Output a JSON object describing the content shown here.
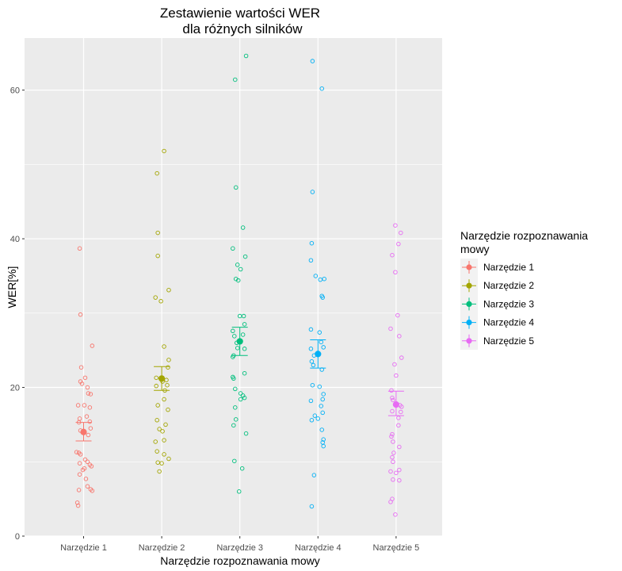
{
  "chart_data": {
    "type": "scatter",
    "title_line1": "Zestawienie wartości WER",
    "title_line2": "dla różnych silników",
    "xlabel": "Narzędzie rozpoznawania mowy",
    "ylabel": "WER[%]",
    "ylim": [
      0,
      67
    ],
    "yticks": [
      0,
      20,
      40,
      60
    ],
    "categories": [
      "Narzędzie 1",
      "Narzędzie 2",
      "Narzędzie 3",
      "Narzędzie 4",
      "Narzędzie 5"
    ],
    "legend": {
      "title_line1": "Narzędzie rozpoznawania",
      "title_line2": "mowy",
      "placement": "right"
    },
    "grid": true,
    "series": [
      {
        "name": "Narzędzie 1",
        "color": "#F8766D",
        "mean": 14.0,
        "ci": [
          12.8,
          15.3
        ],
        "points": [
          [
            -0.05,
            38.7
          ],
          [
            -0.04,
            29.8
          ],
          [
            0.11,
            25.6
          ],
          [
            -0.03,
            22.7
          ],
          [
            0.02,
            21.3
          ],
          [
            -0.04,
            20.8
          ],
          [
            -0.02,
            20.5
          ],
          [
            0.05,
            20.0
          ],
          [
            0.06,
            19.2
          ],
          [
            0.09,
            19.1
          ],
          [
            -0.07,
            17.6
          ],
          [
            0.01,
            17.6
          ],
          [
            0.04,
            16.1
          ],
          [
            0.08,
            17.3
          ],
          [
            -0.05,
            15.8
          ],
          [
            -0.06,
            15.3
          ],
          [
            0.08,
            15.4
          ],
          [
            0.09,
            14.5
          ],
          [
            -0.04,
            14.2
          ],
          [
            0.06,
            13.6
          ],
          [
            -0.09,
            11.3
          ],
          [
            -0.06,
            11.2
          ],
          [
            -0.04,
            11.0
          ],
          [
            0.02,
            10.3
          ],
          [
            -0.05,
            9.8
          ],
          [
            0.05,
            10.0
          ],
          [
            0.08,
            9.6
          ],
          [
            0.1,
            9.4
          ],
          [
            0.01,
            9.1
          ],
          [
            -0.01,
            8.9
          ],
          [
            -0.05,
            8.3
          ],
          [
            0.03,
            7.7
          ],
          [
            0.05,
            6.7
          ],
          [
            -0.06,
            6.2
          ],
          [
            0.09,
            6.3
          ],
          [
            0.11,
            6.1
          ],
          [
            -0.08,
            4.5
          ],
          [
            -0.07,
            4.1
          ]
        ]
      },
      {
        "name": "Narzędzie 2",
        "color": "#A3A500",
        "mean": 21.2,
        "ci": [
          19.6,
          22.8
        ],
        "points": [
          [
            0.03,
            51.8
          ],
          [
            -0.06,
            48.8
          ],
          [
            -0.05,
            40.8
          ],
          [
            -0.05,
            37.7
          ],
          [
            0.09,
            33.1
          ],
          [
            -0.08,
            32.1
          ],
          [
            -0.01,
            31.6
          ],
          [
            0.03,
            25.5
          ],
          [
            0.09,
            23.7
          ],
          [
            0.08,
            22.7
          ],
          [
            -0.07,
            21.3
          ],
          [
            0.01,
            20.8
          ],
          [
            0.06,
            21.0
          ],
          [
            -0.07,
            20.2
          ],
          [
            0.04,
            19.6
          ],
          [
            0.07,
            20.3
          ],
          [
            0.03,
            18.4
          ],
          [
            -0.05,
            17.6
          ],
          [
            0.08,
            17.0
          ],
          [
            -0.06,
            15.6
          ],
          [
            0.05,
            15.0
          ],
          [
            -0.03,
            14.4
          ],
          [
            0.01,
            14.1
          ],
          [
            0.03,
            12.9
          ],
          [
            -0.08,
            12.7
          ],
          [
            -0.06,
            11.4
          ],
          [
            0.03,
            11.0
          ],
          [
            0.09,
            10.4
          ],
          [
            -0.05,
            9.9
          ],
          [
            0.0,
            9.8
          ],
          [
            -0.03,
            8.7
          ]
        ]
      },
      {
        "name": "Narzędzie 3",
        "color": "#00BF7D",
        "mean": 26.2,
        "ci": [
          24.3,
          28.1
        ],
        "points": [
          [
            0.08,
            64.6
          ],
          [
            -0.06,
            61.4
          ],
          [
            -0.05,
            46.9
          ],
          [
            0.04,
            41.5
          ],
          [
            -0.09,
            38.7
          ],
          [
            0.07,
            37.6
          ],
          [
            -0.03,
            36.5
          ],
          [
            0.01,
            35.9
          ],
          [
            -0.05,
            34.6
          ],
          [
            -0.02,
            34.4
          ],
          [
            0.0,
            29.6
          ],
          [
            0.05,
            29.6
          ],
          [
            0.06,
            28.5
          ],
          [
            -0.09,
            27.6
          ],
          [
            -0.07,
            26.9
          ],
          [
            0.04,
            27.1
          ],
          [
            -0.04,
            26.0
          ],
          [
            0.06,
            25.2
          ],
          [
            -0.03,
            25.3
          ],
          [
            -0.09,
            24.1
          ],
          [
            -0.08,
            24.3
          ],
          [
            -0.09,
            21.4
          ],
          [
            -0.08,
            21.2
          ],
          [
            0.06,
            21.9
          ],
          [
            -0.06,
            19.8
          ],
          [
            0.01,
            19.2
          ],
          [
            0.04,
            18.9
          ],
          [
            0.01,
            18.4
          ],
          [
            0.06,
            18.6
          ],
          [
            -0.06,
            17.3
          ],
          [
            -0.05,
            15.7
          ],
          [
            -0.08,
            14.9
          ],
          [
            0.08,
            13.8
          ],
          [
            -0.07,
            10.1
          ],
          [
            0.03,
            9.1
          ],
          [
            -0.01,
            6.0
          ]
        ]
      },
      {
        "name": "Narzędzie 4",
        "color": "#00B0F6",
        "mean": 24.5,
        "ci": [
          22.6,
          26.4
        ],
        "points": [
          [
            -0.07,
            63.9
          ],
          [
            0.05,
            60.2
          ],
          [
            -0.07,
            46.3
          ],
          [
            -0.08,
            39.4
          ],
          [
            -0.09,
            37.1
          ],
          [
            -0.03,
            35.0
          ],
          [
            0.03,
            34.5
          ],
          [
            0.08,
            34.6
          ],
          [
            0.05,
            32.3
          ],
          [
            0.06,
            32.1
          ],
          [
            -0.09,
            27.8
          ],
          [
            0.02,
            27.4
          ],
          [
            0.04,
            26.1
          ],
          [
            0.07,
            25.4
          ],
          [
            -0.09,
            25.2
          ],
          [
            -0.05,
            24.3
          ],
          [
            -0.08,
            23.5
          ],
          [
            -0.06,
            23.0
          ],
          [
            0.05,
            22.4
          ],
          [
            -0.07,
            20.3
          ],
          [
            0.02,
            20.1
          ],
          [
            0.07,
            19.1
          ],
          [
            0.06,
            18.4
          ],
          [
            -0.09,
            18.2
          ],
          [
            0.04,
            17.5
          ],
          [
            0.06,
            16.6
          ],
          [
            -0.04,
            16.2
          ],
          [
            0.0,
            15.8
          ],
          [
            -0.08,
            15.6
          ],
          [
            0.05,
            14.3
          ],
          [
            0.07,
            13.0
          ],
          [
            0.06,
            12.6
          ],
          [
            0.07,
            12.1
          ],
          [
            -0.05,
            8.2
          ],
          [
            -0.08,
            4.0
          ]
        ]
      },
      {
        "name": "Narzędzie 5",
        "color": "#E76BF3",
        "mean": 17.7,
        "ci": [
          16.2,
          19.5
        ],
        "points": [
          [
            -0.01,
            41.8
          ],
          [
            0.06,
            40.8
          ],
          [
            0.03,
            39.3
          ],
          [
            -0.05,
            37.8
          ],
          [
            -0.01,
            35.5
          ],
          [
            0.02,
            29.7
          ],
          [
            -0.07,
            27.9
          ],
          [
            0.04,
            26.9
          ],
          [
            0.07,
            24.0
          ],
          [
            -0.02,
            23.1
          ],
          [
            0.0,
            21.6
          ],
          [
            -0.06,
            19.6
          ],
          [
            -0.05,
            18.6
          ],
          [
            -0.04,
            18.3
          ],
          [
            0.05,
            17.6
          ],
          [
            0.07,
            17.4
          ],
          [
            -0.05,
            16.8
          ],
          [
            0.06,
            16.7
          ],
          [
            0.03,
            15.9
          ],
          [
            0.03,
            14.9
          ],
          [
            -0.05,
            13.7
          ],
          [
            -0.06,
            13.4
          ],
          [
            -0.04,
            12.7
          ],
          [
            0.04,
            12.0
          ],
          [
            -0.03,
            11.2
          ],
          [
            -0.05,
            10.6
          ],
          [
            -0.04,
            10.0
          ],
          [
            0.04,
            8.9
          ],
          [
            -0.07,
            8.7
          ],
          [
            0.0,
            8.5
          ],
          [
            -0.04,
            7.6
          ],
          [
            0.04,
            7.5
          ],
          [
            -0.05,
            5.0
          ],
          [
            -0.07,
            4.6
          ],
          [
            -0.01,
            2.9
          ]
        ]
      }
    ]
  }
}
